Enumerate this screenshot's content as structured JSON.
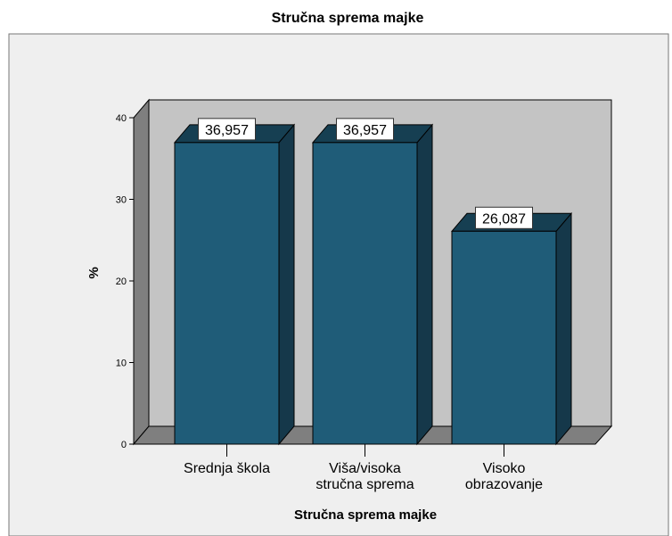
{
  "chart_data": {
    "type": "bar",
    "title": "Stručna sprema majke",
    "xlabel": "Stručna sprema majke",
    "ylabel": "%",
    "categories": [
      [
        "Srednja škola"
      ],
      [
        "Viša/visoka",
        "stručna sprema"
      ],
      [
        "Visoko",
        "obrazovanje"
      ]
    ],
    "values": [
      36.957,
      36.957,
      26.087
    ],
    "data_labels": [
      "36,957",
      "36,957",
      "26,087"
    ],
    "ylim": [
      0,
      40
    ],
    "yticks": [
      0,
      10,
      20,
      30,
      40
    ],
    "bar_style": "3d",
    "colors": {
      "bar_front": "#1f5c78",
      "bar_top": "#163f52",
      "bar_side": "#15384a",
      "plot_back": "#c4c4c4",
      "floor": "#7f7f7f",
      "left_wall": "#7f7f7f",
      "frame_bg": "#efefef"
    }
  }
}
